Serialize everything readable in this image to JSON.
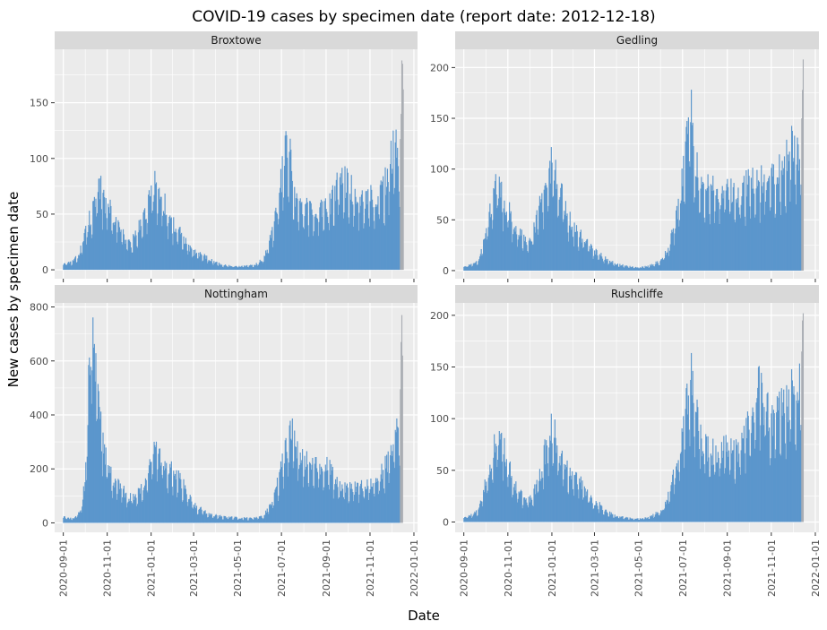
{
  "chart_data": {
    "type": "bar",
    "title": "COVID-19 cases by specimen date (report date: 2012-12-18)",
    "xlabel": "Date",
    "ylabel": "New cases by specimen date",
    "grid": true,
    "legend": "none",
    "colors": {
      "bar": "#5b96cc",
      "incomplete": "#a9adb3",
      "panel_bg": "#ebebeb",
      "strip_bg": "#d9d9d9",
      "grid": "#ffffff"
    },
    "x_ticks": [
      "2020-09-01",
      "2020-11-01",
      "2021-01-01",
      "2021-03-01",
      "2021-05-01",
      "2021-07-01",
      "2021-09-01",
      "2021-11-01",
      "2022-01-01"
    ],
    "xlim": [
      "2020-08-20",
      "2022-01-06"
    ],
    "incomplete_from": "2021-12-13",
    "panels": [
      {
        "name": "Broxtowe",
        "ylim": [
          -8,
          198
        ],
        "y_ticks": [
          0,
          50,
          100,
          150
        ],
        "keypoints": [
          [
            "2020-09-01",
            5
          ],
          [
            "2020-09-12",
            6
          ],
          [
            "2020-09-22",
            12
          ],
          [
            "2020-10-01",
            30
          ],
          [
            "2020-10-08",
            45
          ],
          [
            "2020-10-15",
            55
          ],
          [
            "2020-10-22",
            68
          ],
          [
            "2020-10-29",
            58
          ],
          [
            "2020-11-05",
            52
          ],
          [
            "2020-11-12",
            45
          ],
          [
            "2020-11-19",
            35
          ],
          [
            "2020-11-26",
            25
          ],
          [
            "2020-12-03",
            22
          ],
          [
            "2020-12-10",
            28
          ],
          [
            "2020-12-17",
            38
          ],
          [
            "2020-12-24",
            48
          ],
          [
            "2020-12-31",
            62
          ],
          [
            "2021-01-06",
            72
          ],
          [
            "2021-01-12",
            66
          ],
          [
            "2021-01-20",
            55
          ],
          [
            "2021-01-28",
            42
          ],
          [
            "2021-02-05",
            34
          ],
          [
            "2021-02-15",
            26
          ],
          [
            "2021-02-25",
            16
          ],
          [
            "2021-03-08",
            13
          ],
          [
            "2021-03-18",
            11
          ],
          [
            "2021-03-28",
            7
          ],
          [
            "2021-04-10",
            4
          ],
          [
            "2021-04-25",
            3
          ],
          [
            "2021-05-10",
            3
          ],
          [
            "2021-05-25",
            4
          ],
          [
            "2021-06-05",
            9
          ],
          [
            "2021-06-15",
            25
          ],
          [
            "2021-06-25",
            50
          ],
          [
            "2021-07-02",
            80
          ],
          [
            "2021-07-08",
            100
          ],
          [
            "2021-07-14",
            90
          ],
          [
            "2021-07-20",
            62
          ],
          [
            "2021-07-28",
            50
          ],
          [
            "2021-08-10",
            50
          ],
          [
            "2021-08-25",
            52
          ],
          [
            "2021-09-05",
            52
          ],
          [
            "2021-09-12",
            62
          ],
          [
            "2021-09-20",
            75
          ],
          [
            "2021-09-30",
            72
          ],
          [
            "2021-10-10",
            65
          ],
          [
            "2021-10-20",
            60
          ],
          [
            "2021-11-01",
            60
          ],
          [
            "2021-11-12",
            62
          ],
          [
            "2021-11-22",
            72
          ],
          [
            "2021-11-28",
            85
          ],
          [
            "2021-12-04",
            105
          ],
          [
            "2021-12-08",
            100
          ],
          [
            "2021-12-12",
            95
          ],
          [
            "2021-12-14",
            140
          ],
          [
            "2021-12-15",
            188
          ],
          [
            "2021-12-16",
            185
          ],
          [
            "2021-12-17",
            162
          ]
        ]
      },
      {
        "name": "Gedling",
        "ylim": [
          -8,
          218
        ],
        "y_ticks": [
          0,
          50,
          100,
          150,
          200
        ],
        "keypoints": [
          [
            "2020-09-01",
            4
          ],
          [
            "2020-09-10",
            5
          ],
          [
            "2020-09-20",
            8
          ],
          [
            "2020-10-01",
            32
          ],
          [
            "2020-10-08",
            60
          ],
          [
            "2020-10-15",
            80
          ],
          [
            "2020-10-22",
            72
          ],
          [
            "2020-10-29",
            62
          ],
          [
            "2020-11-05",
            52
          ],
          [
            "2020-11-12",
            42
          ],
          [
            "2020-11-19",
            32
          ],
          [
            "2020-11-26",
            28
          ],
          [
            "2020-12-03",
            30
          ],
          [
            "2020-12-10",
            45
          ],
          [
            "2020-12-17",
            65
          ],
          [
            "2020-12-25",
            85
          ],
          [
            "2021-01-02",
            100
          ],
          [
            "2021-01-08",
            90
          ],
          [
            "2021-01-16",
            65
          ],
          [
            "2021-01-25",
            48
          ],
          [
            "2021-02-05",
            35
          ],
          [
            "2021-02-15",
            28
          ],
          [
            "2021-02-25",
            20
          ],
          [
            "2021-03-08",
            15
          ],
          [
            "2021-03-20",
            10
          ],
          [
            "2021-04-01",
            6
          ],
          [
            "2021-04-15",
            4
          ],
          [
            "2021-05-01",
            3
          ],
          [
            "2021-05-15",
            4
          ],
          [
            "2021-06-01",
            9
          ],
          [
            "2021-06-12",
            22
          ],
          [
            "2021-06-22",
            50
          ],
          [
            "2021-07-01",
            85
          ],
          [
            "2021-07-08",
            120
          ],
          [
            "2021-07-12",
            150
          ],
          [
            "2021-07-16",
            110
          ],
          [
            "2021-07-25",
            78
          ],
          [
            "2021-08-10",
            72
          ],
          [
            "2021-08-25",
            74
          ],
          [
            "2021-09-05",
            72
          ],
          [
            "2021-09-15",
            64
          ],
          [
            "2021-09-28",
            80
          ],
          [
            "2021-10-10",
            85
          ],
          [
            "2021-10-20",
            80
          ],
          [
            "2021-11-01",
            85
          ],
          [
            "2021-11-10",
            88
          ],
          [
            "2021-11-20",
            100
          ],
          [
            "2021-11-28",
            110
          ],
          [
            "2021-12-04",
            115
          ],
          [
            "2021-12-10",
            105
          ],
          [
            "2021-12-13",
            150
          ],
          [
            "2021-12-14",
            178
          ],
          [
            "2021-12-15",
            208
          ]
        ]
      },
      {
        "name": "Nottingham",
        "ylim": [
          -35,
          815
        ],
        "y_ticks": [
          0,
          200,
          400,
          600,
          800
        ],
        "keypoints": [
          [
            "2020-09-01",
            20
          ],
          [
            "2020-09-10",
            15
          ],
          [
            "2020-09-18",
            20
          ],
          [
            "2020-09-25",
            45
          ],
          [
            "2020-10-01",
            140
          ],
          [
            "2020-10-05",
            400
          ],
          [
            "2020-10-08",
            620
          ],
          [
            "2020-10-12",
            720
          ],
          [
            "2020-10-16",
            520
          ],
          [
            "2020-10-20",
            400
          ],
          [
            "2020-10-25",
            300
          ],
          [
            "2020-11-01",
            200
          ],
          [
            "2020-11-10",
            150
          ],
          [
            "2020-11-20",
            120
          ],
          [
            "2020-11-30",
            90
          ],
          [
            "2020-12-10",
            90
          ],
          [
            "2020-12-20",
            120
          ],
          [
            "2020-12-28",
            180
          ],
          [
            "2021-01-04",
            270
          ],
          [
            "2021-01-10",
            240
          ],
          [
            "2021-01-20",
            200
          ],
          [
            "2021-02-01",
            170
          ],
          [
            "2021-02-12",
            140
          ],
          [
            "2021-02-22",
            90
          ],
          [
            "2021-03-05",
            55
          ],
          [
            "2021-03-18",
            35
          ],
          [
            "2021-04-01",
            25
          ],
          [
            "2021-04-15",
            20
          ],
          [
            "2021-05-01",
            18
          ],
          [
            "2021-05-20",
            16
          ],
          [
            "2021-06-05",
            22
          ],
          [
            "2021-06-15",
            60
          ],
          [
            "2021-06-25",
            130
          ],
          [
            "2021-07-01",
            200
          ],
          [
            "2021-07-10",
            270
          ],
          [
            "2021-07-15",
            320
          ],
          [
            "2021-07-20",
            280
          ],
          [
            "2021-07-28",
            220
          ],
          [
            "2021-08-10",
            200
          ],
          [
            "2021-08-25",
            200
          ],
          [
            "2021-09-05",
            190
          ],
          [
            "2021-09-15",
            140
          ],
          [
            "2021-09-28",
            120
          ],
          [
            "2021-10-10",
            125
          ],
          [
            "2021-10-20",
            130
          ],
          [
            "2021-11-01",
            135
          ],
          [
            "2021-11-12",
            150
          ],
          [
            "2021-11-22",
            200
          ],
          [
            "2021-11-30",
            240
          ],
          [
            "2021-12-06",
            290
          ],
          [
            "2021-12-12",
            320
          ],
          [
            "2021-12-14",
            670
          ],
          [
            "2021-12-15",
            770
          ],
          [
            "2021-12-16",
            620
          ]
        ]
      },
      {
        "name": "Rushcliffe",
        "ylim": [
          -10,
          212
        ],
        "y_ticks": [
          0,
          50,
          100,
          150,
          200
        ],
        "keypoints": [
          [
            "2020-09-01",
            4
          ],
          [
            "2020-09-10",
            6
          ],
          [
            "2020-09-20",
            10
          ],
          [
            "2020-10-01",
            35
          ],
          [
            "2020-10-08",
            55
          ],
          [
            "2020-10-15",
            70
          ],
          [
            "2020-10-22",
            75
          ],
          [
            "2020-10-29",
            60
          ],
          [
            "2020-11-05",
            45
          ],
          [
            "2020-11-12",
            32
          ],
          [
            "2020-11-19",
            24
          ],
          [
            "2020-11-26",
            20
          ],
          [
            "2020-12-03",
            22
          ],
          [
            "2020-12-10",
            32
          ],
          [
            "2020-12-17",
            48
          ],
          [
            "2020-12-25",
            70
          ],
          [
            "2021-01-02",
            90
          ],
          [
            "2021-01-08",
            72
          ],
          [
            "2021-01-16",
            55
          ],
          [
            "2021-01-25",
            45
          ],
          [
            "2021-02-05",
            40
          ],
          [
            "2021-02-15",
            30
          ],
          [
            "2021-02-25",
            20
          ],
          [
            "2021-03-08",
            15
          ],
          [
            "2021-03-20",
            9
          ],
          [
            "2021-04-01",
            5
          ],
          [
            "2021-04-15",
            4
          ],
          [
            "2021-05-01",
            3
          ],
          [
            "2021-05-15",
            4
          ],
          [
            "2021-06-01",
            10
          ],
          [
            "2021-06-12",
            24
          ],
          [
            "2021-06-22",
            50
          ],
          [
            "2021-07-01",
            80
          ],
          [
            "2021-07-08",
            110
          ],
          [
            "2021-07-14",
            135
          ],
          [
            "2021-07-20",
            100
          ],
          [
            "2021-07-28",
            70
          ],
          [
            "2021-08-10",
            62
          ],
          [
            "2021-08-25",
            65
          ],
          [
            "2021-09-05",
            65
          ],
          [
            "2021-09-15",
            62
          ],
          [
            "2021-09-25",
            80
          ],
          [
            "2021-10-05",
            95
          ],
          [
            "2021-10-15",
            120
          ],
          [
            "2021-10-25",
            100
          ],
          [
            "2021-11-05",
            95
          ],
          [
            "2021-11-15",
            105
          ],
          [
            "2021-11-25",
            110
          ],
          [
            "2021-12-02",
            120
          ],
          [
            "2021-12-08",
            115
          ],
          [
            "2021-12-12",
            135
          ],
          [
            "2021-12-14",
            195
          ],
          [
            "2021-12-15",
            202
          ]
        ]
      }
    ]
  }
}
